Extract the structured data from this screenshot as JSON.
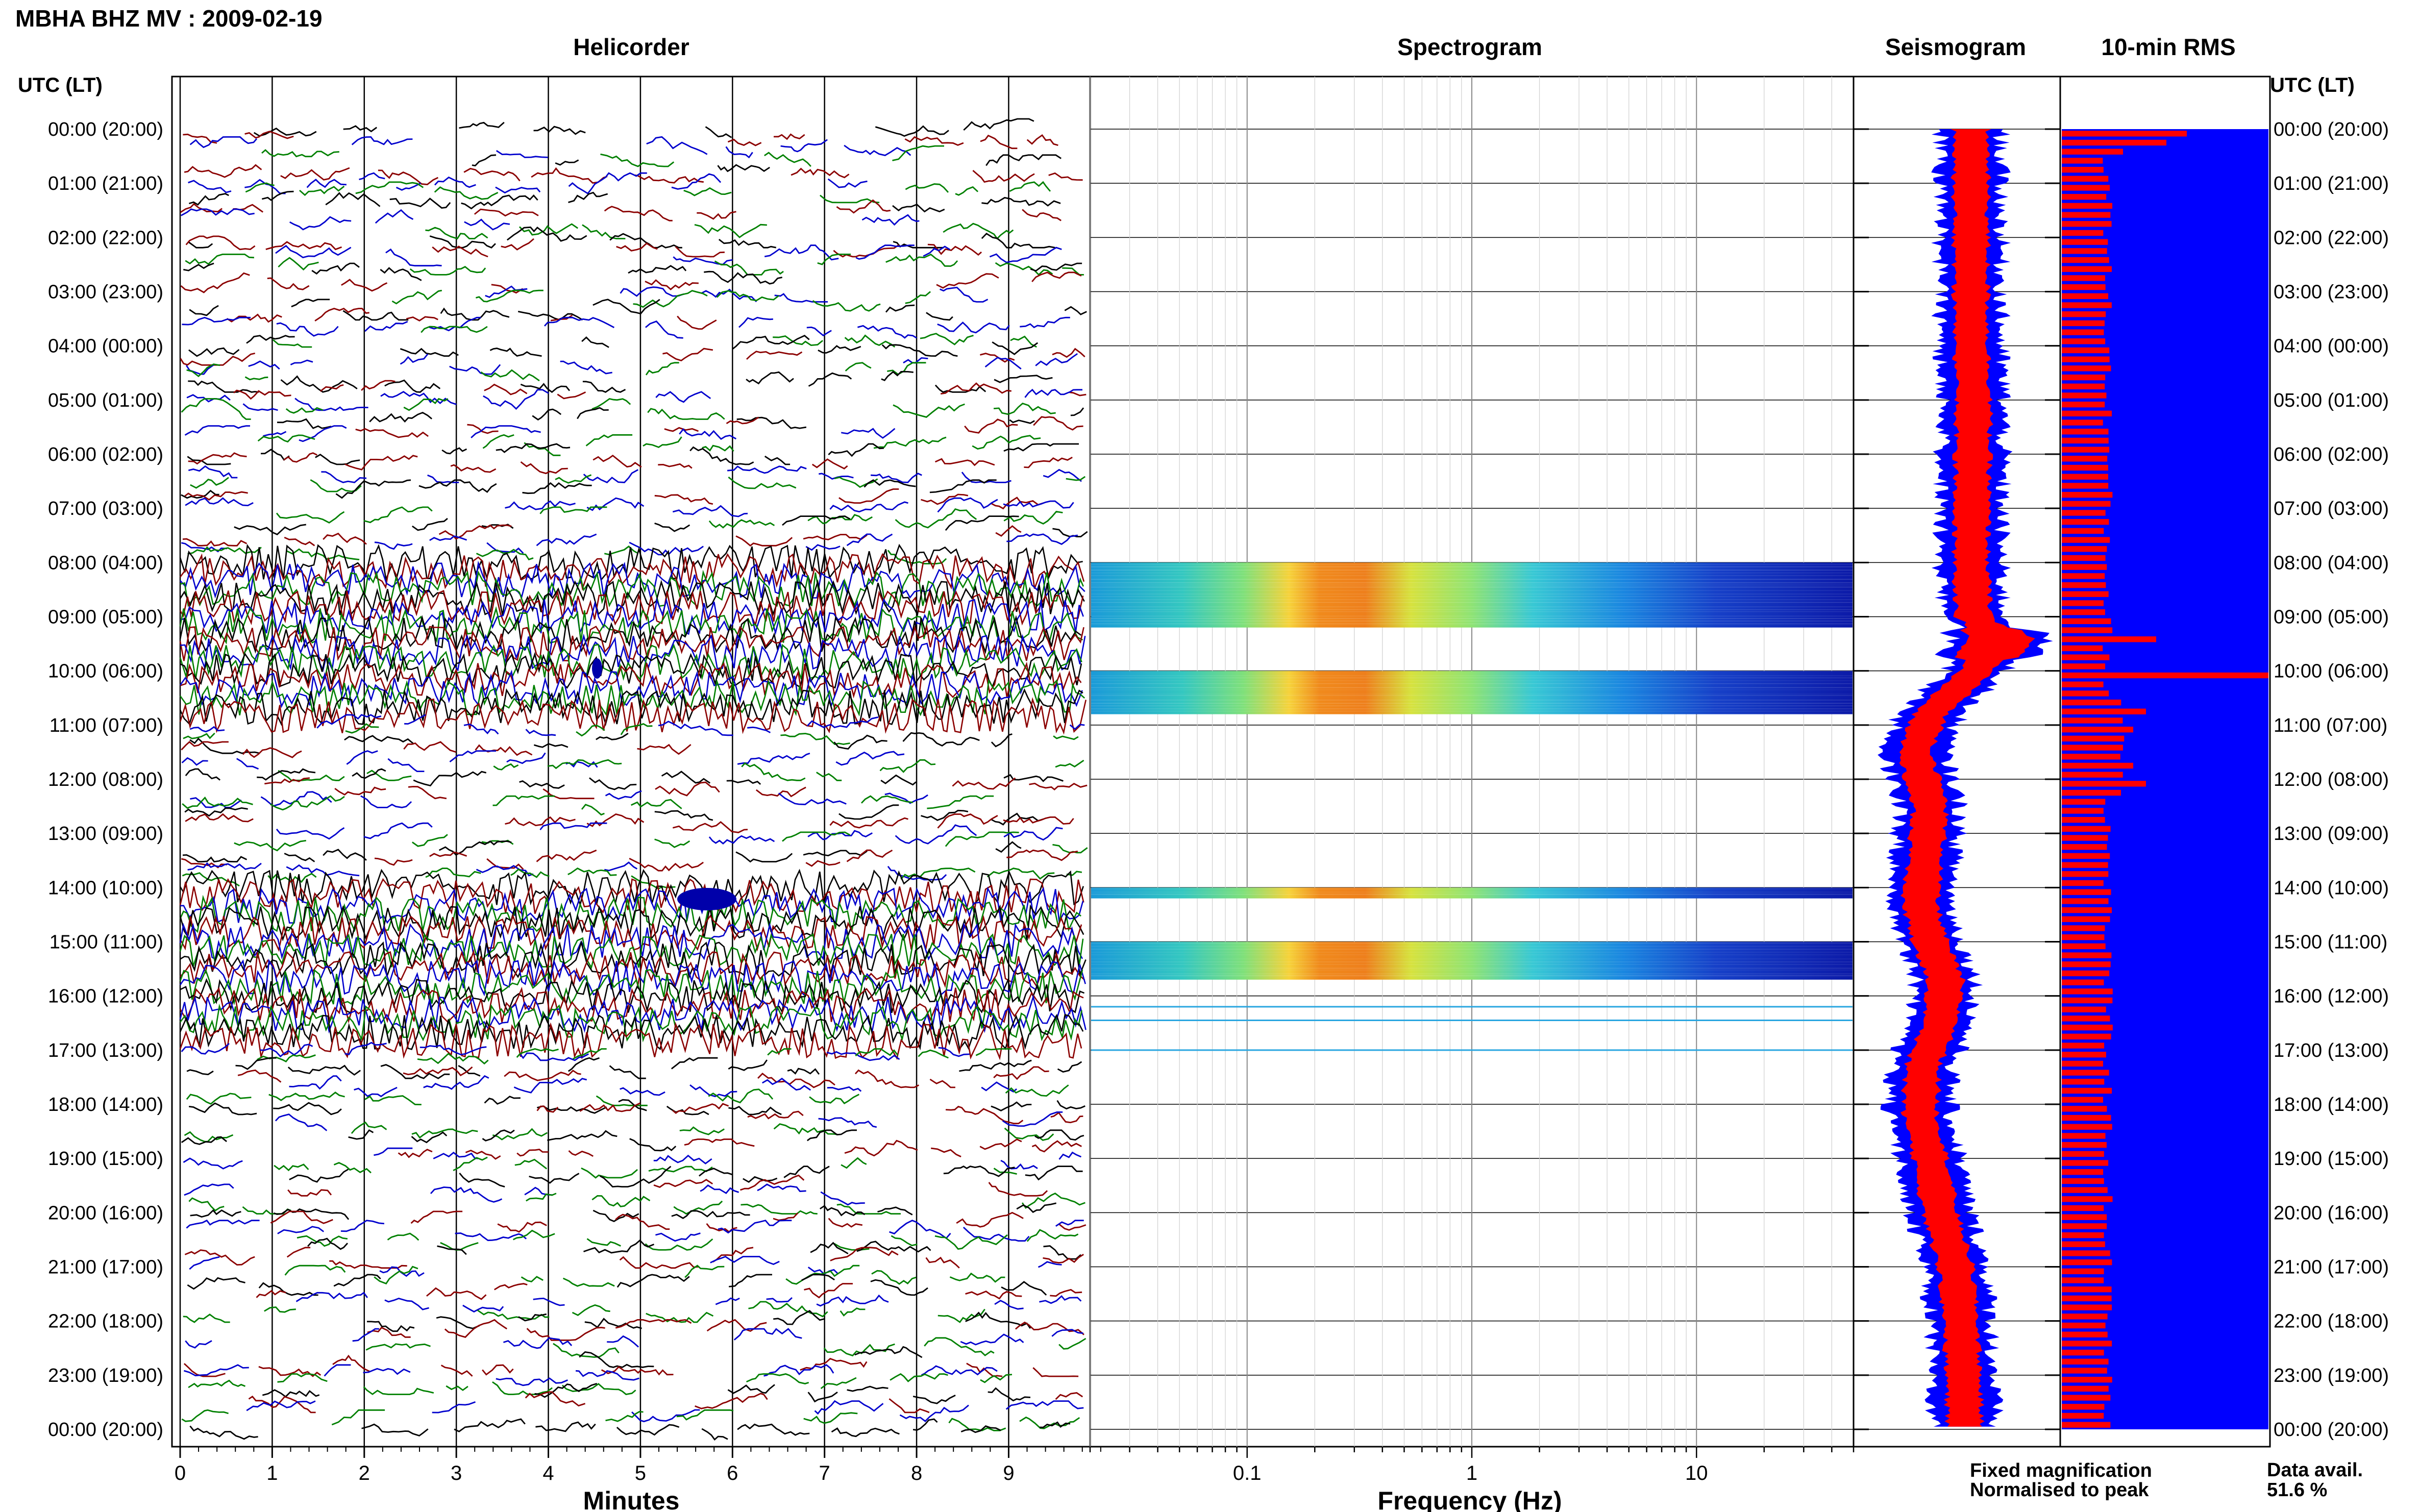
{
  "chart_data": {
    "title": "MBHA BHZ MV : 2009-02-19",
    "panels": {
      "helicorder": "Helicorder",
      "spectrogram": "Spectrogram",
      "seismogram": "Seismogram",
      "rms": "10-min RMS"
    },
    "time_axis_label_left": "UTC (LT)",
    "time_axis_label_right": "UTC (LT)",
    "hour_labels": [
      "00:00 (20:00)",
      "01:00 (21:00)",
      "02:00 (22:00)",
      "03:00 (23:00)",
      "04:00 (00:00)",
      "05:00 (01:00)",
      "06:00 (02:00)",
      "07:00 (03:00)",
      "08:00 (04:00)",
      "09:00 (05:00)",
      "10:00 (06:00)",
      "11:00 (07:00)",
      "12:00 (08:00)",
      "13:00 (09:00)",
      "14:00 (10:00)",
      "15:00 (11:00)",
      "16:00 (12:00)",
      "17:00 (13:00)",
      "18:00 (14:00)",
      "19:00 (15:00)",
      "20:00 (16:00)",
      "21:00 (17:00)",
      "22:00 (18:00)",
      "23:00 (19:00)",
      "00:00 (20:00)"
    ],
    "helicorder": {
      "type": "line",
      "xlabel": "Minutes",
      "xlim": [
        0,
        10
      ],
      "x_ticks": [
        0,
        1,
        2,
        3,
        4,
        5,
        6,
        7,
        8,
        9
      ],
      "x_tick_labels": [
        "0",
        "1",
        "2",
        "3",
        "4",
        "5",
        "6",
        "7",
        "8",
        "9"
      ],
      "trace_colors": [
        "#000000",
        "#8b0000",
        "#0000cd",
        "#008000"
      ],
      "grid": true,
      "high_amplitude_hours": [
        8,
        9,
        10,
        14,
        15,
        16
      ]
    },
    "spectrogram": {
      "type": "heatmap",
      "xlabel": "Frequency (Hz)",
      "x_scale": "log",
      "xlim": [
        0.02,
        50
      ],
      "x_ticks": [
        0.1,
        1,
        10
      ],
      "x_tick_labels": [
        "0.1",
        "1",
        "10"
      ],
      "active_bands_hours": [
        [
          8.0,
          9.2
        ],
        [
          10.0,
          10.8
        ],
        [
          14.0,
          14.2
        ],
        [
          15.0,
          15.7
        ]
      ]
    },
    "seismogram": {
      "type": "area",
      "series": [
        {
          "name": "Fixed magnification",
          "color": "#0000ff"
        },
        {
          "name": "Normalised to peak",
          "color": "#ff0000"
        }
      ]
    },
    "rms": {
      "type": "bar",
      "colors": {
        "fill": "#0000ff",
        "bars": "#ff0000"
      },
      "data_avail_label": "Data avail.",
      "data_avail_value": "51.6 %"
    }
  }
}
